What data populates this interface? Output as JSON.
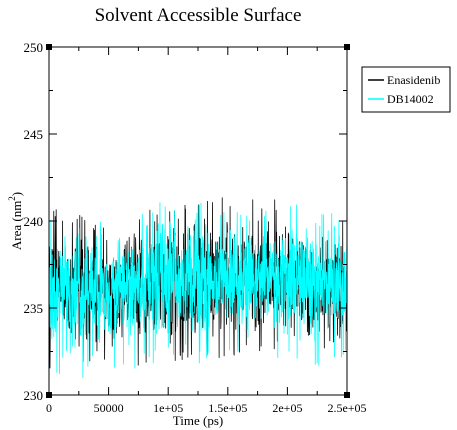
{
  "chart_data": {
    "type": "line",
    "title": "Solvent Accessible Surface",
    "xlabel": "Time (ps)",
    "ylabel": "Area (nm",
    "ylabel_sup": "2",
    "ylabel_close": ")",
    "xlim": [
      0,
      250000
    ],
    "ylim": [
      230,
      250
    ],
    "x_ticks": [
      {
        "value": 0,
        "label": "0"
      },
      {
        "value": 50000,
        "label": "50000"
      },
      {
        "value": 100000,
        "label": "1e+05"
      },
      {
        "value": 150000,
        "label": "1.5e+05"
      },
      {
        "value": 200000,
        "label": "2e+05"
      },
      {
        "value": 250000,
        "label": "2.5e+05"
      }
    ],
    "y_ticks": [
      {
        "value": 230,
        "label": "230"
      },
      {
        "value": 235,
        "label": "235"
      },
      {
        "value": 240,
        "label": "240"
      },
      {
        "value": 245,
        "label": "245"
      },
      {
        "value": 250,
        "label": "250"
      }
    ],
    "grid": false,
    "legend_position": "outside-right-top",
    "series": [
      {
        "name": "Enasidenib",
        "color": "#000000",
        "n_samples": 1250,
        "x": [
          0,
          25000,
          50000,
          75000,
          100000,
          125000,
          150000,
          175000,
          200000,
          225000,
          250000
        ],
        "mean": [
          236.2,
          236.0,
          235.9,
          236.0,
          236.2,
          236.4,
          236.6,
          236.5,
          236.6,
          236.4,
          236.3
        ],
        "min": [
          231.4,
          231.2,
          231.3,
          231.5,
          231.8,
          232.0,
          232.0,
          232.3,
          232.6,
          232.1,
          232.0
        ],
        "max": [
          240.8,
          240.5,
          240.4,
          240.6,
          240.8,
          241.0,
          241.5,
          241.2,
          241.3,
          241.0,
          240.8
        ]
      },
      {
        "name": "DB14002",
        "color": "#00ffff",
        "n_samples": 1250,
        "x": [
          0,
          25000,
          50000,
          75000,
          100000,
          125000,
          150000,
          175000,
          200000,
          225000,
          250000
        ],
        "mean": [
          236.0,
          236.0,
          236.1,
          236.3,
          236.4,
          236.6,
          236.5,
          236.7,
          236.6,
          236.6,
          236.4
        ],
        "min": [
          231.0,
          230.8,
          231.0,
          231.4,
          231.6,
          231.8,
          232.0,
          232.2,
          232.0,
          231.6,
          231.8
        ],
        "max": [
          240.4,
          240.2,
          240.6,
          240.8,
          241.3,
          241.5,
          241.2,
          241.0,
          241.0,
          240.8,
          240.5
        ]
      }
    ]
  }
}
